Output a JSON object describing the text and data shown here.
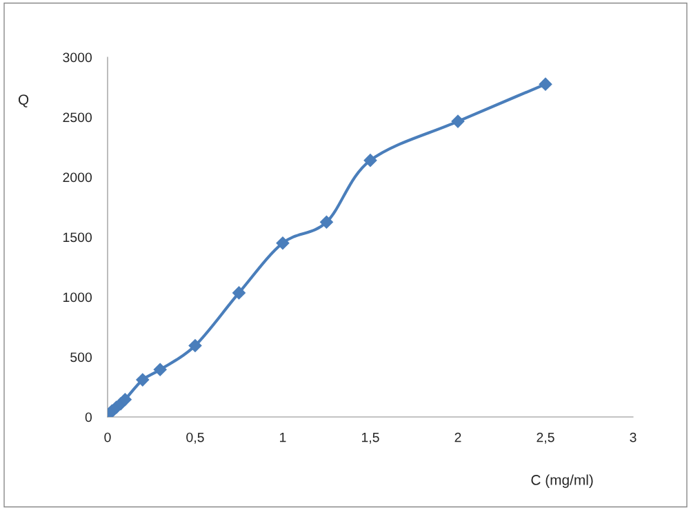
{
  "chart_data": {
    "type": "line",
    "xlabel": "C (mg/ml)",
    "ylabel": "Q",
    "x": [
      0.01,
      0.025,
      0.05,
      0.075,
      0.1,
      0.2,
      0.3,
      0.5,
      0.75,
      1,
      1.25,
      1.5,
      2,
      2.5
    ],
    "series": [
      {
        "color": "#4a7ebb",
        "values": [
          25,
          50,
          80,
          110,
          145,
          310,
          395,
          595,
          1035,
          1450,
          1625,
          2140,
          2465,
          2775
        ]
      }
    ],
    "xlim": [
      0,
      3
    ],
    "xticks": [
      0,
      {
        "value": 0.5,
        "label": "0,5"
      },
      1,
      {
        "value": 1.5,
        "label": "1,5"
      },
      2,
      {
        "value": 2.5,
        "label": "2,5"
      },
      3
    ],
    "ylim": [
      0,
      3000
    ],
    "yticks": [
      0,
      500,
      1000,
      1500,
      2000,
      2500,
      3000
    ],
    "grid": false,
    "legend": false,
    "marker": "diamond",
    "line_style": "solid"
  }
}
